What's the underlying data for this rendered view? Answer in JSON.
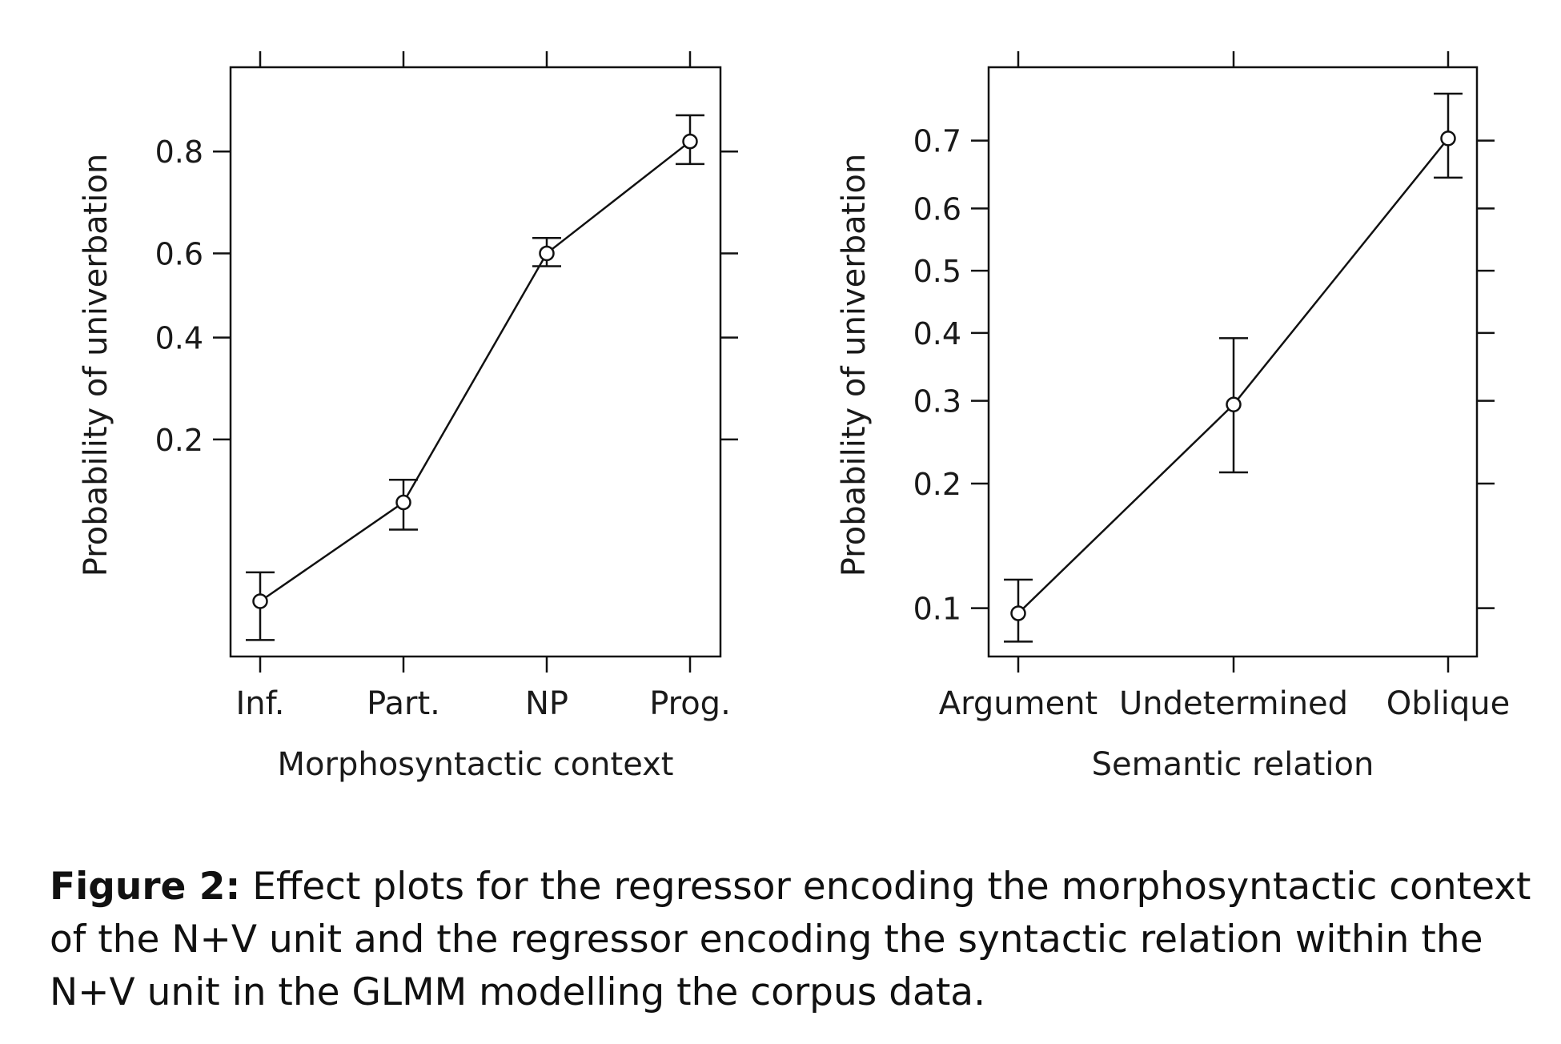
{
  "chart_data": [
    {
      "type": "line",
      "categories": [
        "Inf.",
        "Part.",
        "NP",
        "Prog."
      ],
      "series": [
        {
          "values": [
            0.05,
            0.12,
            0.6,
            0.815
          ],
          "lower": [
            0.035,
            0.095,
            0.57,
            0.78
          ],
          "upper": [
            0.065,
            0.145,
            0.635,
            0.85
          ]
        }
      ],
      "yticks": [
        0.2,
        0.4,
        0.6,
        0.8
      ],
      "ytick_labels": [
        "0.2",
        "0.4",
        "0.6",
        "0.8"
      ],
      "xlabel": "Morphosyntactic context",
      "ylabel": "Probability of univerbation",
      "yscale": "logit",
      "ylim": [
        0.03,
        0.9
      ],
      "grid": false
    },
    {
      "type": "line",
      "categories": [
        "Argument",
        "Undetermined",
        "Oblique"
      ],
      "series": [
        {
          "values": [
            0.097,
            0.295,
            0.703
          ],
          "lower": [
            0.082,
            0.212,
            0.647
          ],
          "upper": [
            0.118,
            0.392,
            0.76
          ]
        }
      ],
      "yticks": [
        0.1,
        0.2,
        0.3,
        0.4,
        0.5,
        0.6,
        0.7
      ],
      "ytick_labels": [
        "0.1",
        "0.2",
        "0.3",
        "0.4",
        "0.5",
        "0.6",
        "0.7"
      ],
      "xlabel": "Semantic relation",
      "ylabel": "Probability of univerbation",
      "yscale": "logit",
      "ylim": [
        0.075,
        0.79
      ],
      "grid": false
    }
  ],
  "caption": {
    "label": "Figure 2:",
    "text": " Effect plots for the regressor encoding the morphosyntactic context of the N+V unit and the regressor encoding the syntactic relation within the N+V unit in the GLMM modelling the corpus data."
  }
}
